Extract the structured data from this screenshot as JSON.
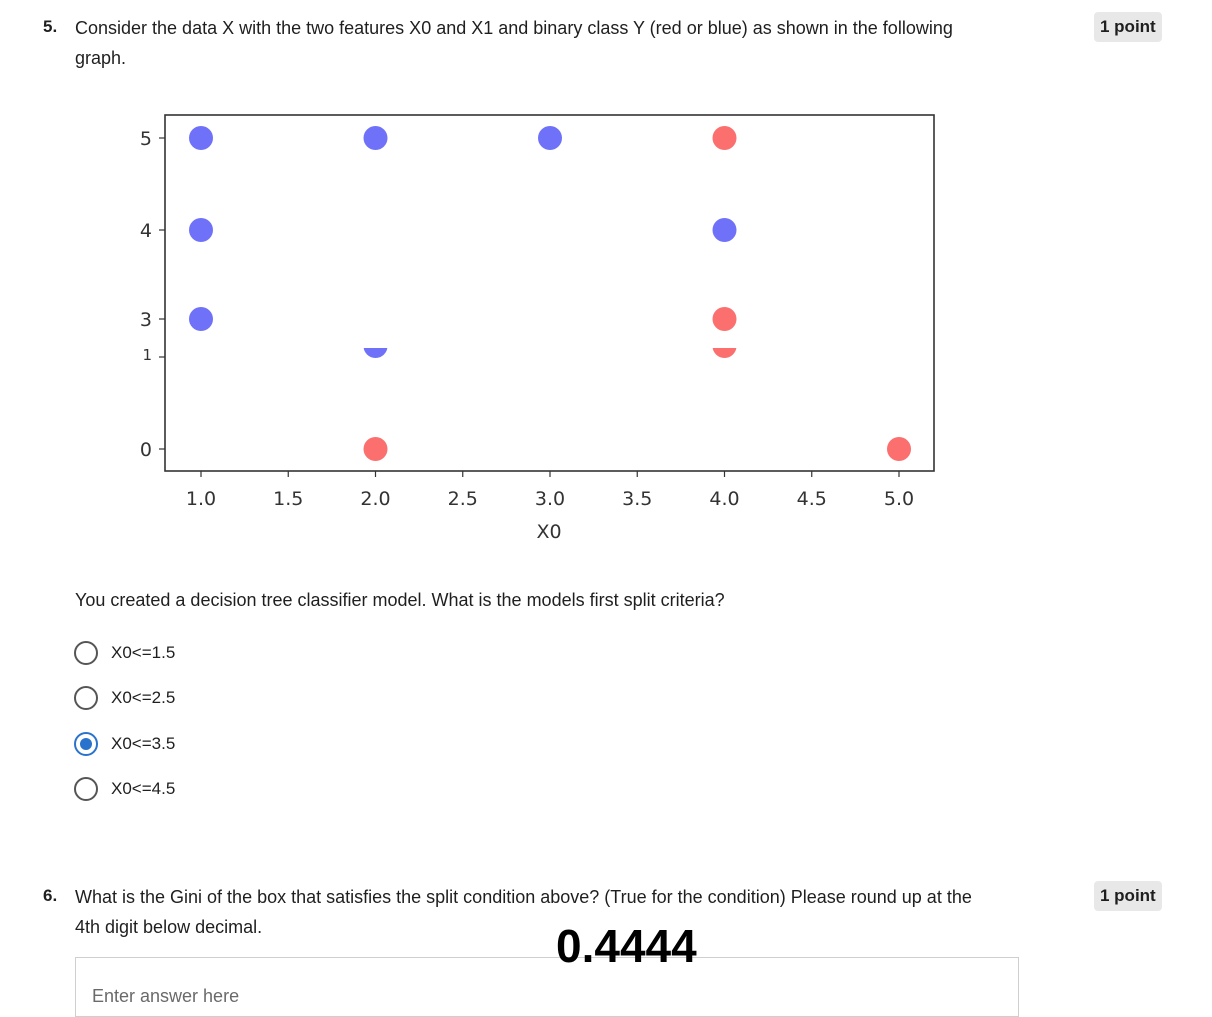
{
  "question5": {
    "number": "5.",
    "text_line1": "Consider the data X with the two features X0 and X1 and binary class Y (red or blue) as shown in the following",
    "text_line2": "graph.",
    "points": "1 point",
    "prompt": "You created a decision tree classifier model. What is the models first split criteria?",
    "options": [
      {
        "label": "X0<=1.5",
        "selected": false
      },
      {
        "label": "X0<=2.5",
        "selected": false
      },
      {
        "label": "X0<=3.5",
        "selected": true
      },
      {
        "label": "X0<=4.5",
        "selected": false
      }
    ]
  },
  "question6": {
    "number": "6.",
    "text_line1": "What is the Gini of the box that satisfies the split condition above? (True for the condition) Please round up at the",
    "text_line2": "4th digit below decimal.",
    "points": "1 point",
    "overlay_answer": "0.4444",
    "input_placeholder": "Enter answer here"
  },
  "colors": {
    "blue": "#6f72f8",
    "red": "#fb6f6f",
    "selected": "#2a73cc"
  },
  "chart_data": {
    "type": "scatter",
    "xlabel": "X0",
    "ylabel": "",
    "xlim": [
      0.8,
      5.2
    ],
    "xticks": [
      1.0,
      1.5,
      2.0,
      2.5,
      3.0,
      3.5,
      4.0,
      4.5,
      5.0
    ],
    "xtick_labels": [
      "1.0",
      "1.5",
      "2.0",
      "2.5",
      "3.0",
      "3.5",
      "4.0",
      "4.5",
      "5.0"
    ],
    "yticks": [
      0,
      1,
      3,
      4,
      5
    ],
    "ytick_labels": [
      "0",
      "1",
      "3",
      "4",
      "5"
    ],
    "series": [
      {
        "name": "blue",
        "points": [
          [
            1,
            5
          ],
          [
            1,
            4
          ],
          [
            1,
            3
          ],
          [
            2,
            5
          ],
          [
            2,
            1
          ],
          [
            3,
            5
          ],
          [
            4,
            4
          ]
        ]
      },
      {
        "name": "red",
        "points": [
          [
            4,
            5
          ],
          [
            4,
            3
          ],
          [
            4,
            1
          ],
          [
            2,
            0
          ],
          [
            5,
            0
          ]
        ]
      }
    ]
  }
}
